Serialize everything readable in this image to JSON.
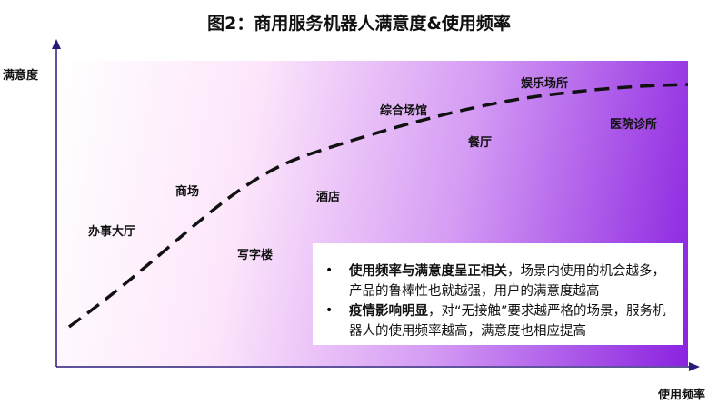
{
  "title": "图2：商用服务机器人满意度&使用频率",
  "y_axis_label": "满意度",
  "x_axis_label": "使用频率",
  "colors": {
    "gradient_start": "#ffffff",
    "gradient_end": "#8a22e0",
    "axis": "#2a1a7a",
    "curve": "#111111"
  },
  "scenes": [
    "办事大厅",
    "商场",
    "写字楼",
    "酒店",
    "综合场馆",
    "餐厅",
    "娱乐场所",
    "医院诊所"
  ],
  "notes": [
    {
      "bold": "使用频率与满意度呈正相关",
      "text": "，场景内使用的机会越多，产品的鲁棒性也就越强，用户的满意度越高"
    },
    {
      "bold": "疫情影响明显",
      "text": "，对“无接触”要求越严格的场景，服务机器人的使用频率越高，满意度也相应提高"
    }
  ]
}
